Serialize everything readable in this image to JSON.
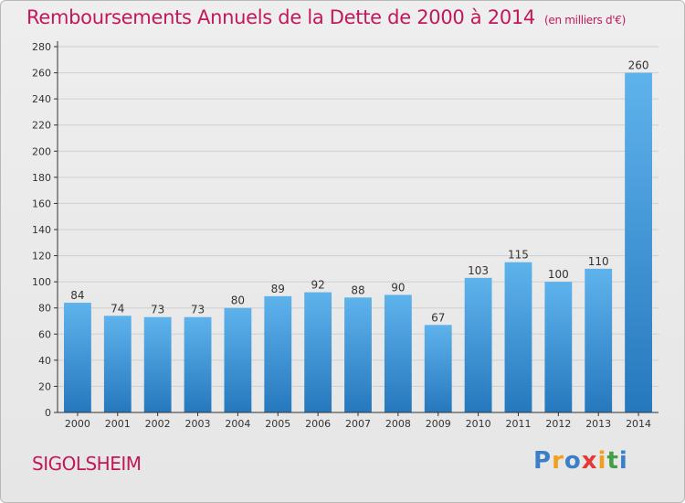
{
  "header": {
    "title": "Remboursements Annuels de la Dette de 2000 à 2014",
    "unit": "(en milliers d'€)"
  },
  "footer": {
    "city": "SIGOLSHEIM",
    "brand": "Proxiti"
  },
  "colors": {
    "title": "#c2185b",
    "bar_light": "#5aaee8",
    "bar_dark": "#2a7fc2",
    "grid": "#cfcfcf",
    "axis": "#333333"
  },
  "chart_data": {
    "type": "bar",
    "title": "Remboursements Annuels de la Dette de 2000 à 2014",
    "xlabel": "",
    "ylabel": "",
    "categories": [
      "2000",
      "2001",
      "2002",
      "2003",
      "2004",
      "2005",
      "2006",
      "2007",
      "2008",
      "2009",
      "2010",
      "2011",
      "2012",
      "2013",
      "2014"
    ],
    "values": [
      84,
      74,
      73,
      73,
      80,
      89,
      92,
      88,
      90,
      67,
      103,
      115,
      100,
      110,
      260
    ],
    "ylim": [
      0,
      280
    ],
    "yticks": [
      0,
      20,
      40,
      60,
      80,
      100,
      120,
      140,
      160,
      180,
      200,
      220,
      240,
      260,
      280
    ],
    "grid": true,
    "legend": "none"
  }
}
